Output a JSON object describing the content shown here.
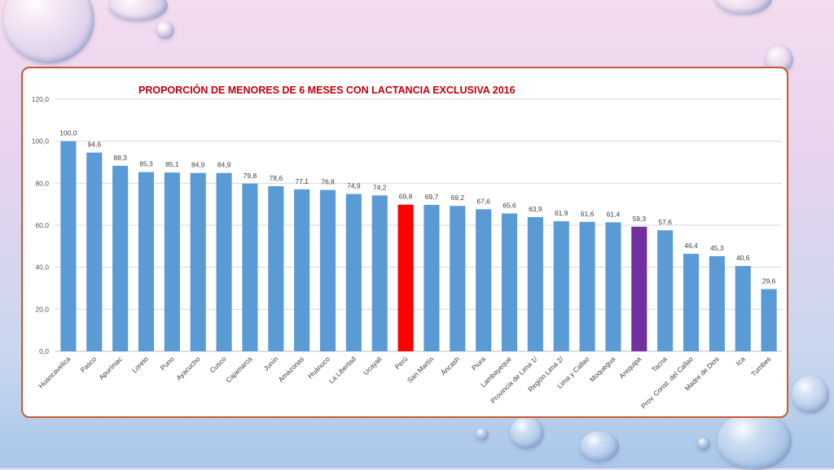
{
  "colors": {
    "bar_default": "#5b9bd5",
    "bar_peru": "#ff0000",
    "bar_arequipa": "#7030a0",
    "card_border": "#c65a2c",
    "title": "#c0000c"
  },
  "chart_data": {
    "type": "bar",
    "title": "PROPORCIÓN DE MENORES DE 6 MESES CON LACTANCIA EXCLUSIVA 2016",
    "ylim": [
      0,
      120
    ],
    "yticks": [
      "0,0",
      "20,0",
      "40,0",
      "60,0",
      "80,0",
      "100,0",
      "120,0"
    ],
    "ytick_values": [
      0,
      20,
      40,
      60,
      80,
      100,
      120
    ],
    "grid": true,
    "categories": [
      "Huancavelica",
      "Pasco",
      "Apurímac",
      "Loreto",
      "Puno",
      "Ayacucho",
      "Cusco",
      "Cajamarca",
      "Junín",
      "Amazonas",
      "Huánuco",
      "La Libertad",
      "Ucayali",
      "Perú",
      "San Martín",
      "Áncash",
      "Piura",
      "Lambayeque",
      "Provincia de Lima 1/",
      "Región Lima 2/",
      "Lima y Callao",
      "Moquegua",
      "Arequipa",
      "Tacna",
      "Prov. Const. del Callao",
      "Madre de Dios",
      "Ica",
      "Tumbes"
    ],
    "values": [
      100.0,
      94.6,
      88.3,
      85.3,
      85.1,
      84.9,
      84.9,
      79.8,
      78.6,
      77.1,
      76.8,
      74.9,
      74.2,
      69.8,
      69.7,
      69.2,
      67.6,
      65.6,
      63.9,
      61.9,
      61.6,
      61.4,
      59.3,
      57.6,
      46.4,
      45.3,
      40.6,
      29.6
    ],
    "value_labels": [
      "100,0",
      "94,6",
      "88,3",
      "85,3",
      "85,1",
      "84,9",
      "84,9",
      "79,8",
      "78,6",
      "77,1",
      "76,8",
      "74,9",
      "74,2",
      "69,8",
      "69,7",
      "69,2",
      "67,6",
      "65,6",
      "63,9",
      "61,9",
      "61,6",
      "61,4",
      "59,3",
      "57,6",
      "46,4",
      "45,3",
      "40,6",
      "29,6"
    ],
    "highlight": {
      "Perú": "bar_peru",
      "Arequipa": "bar_arequipa"
    }
  }
}
